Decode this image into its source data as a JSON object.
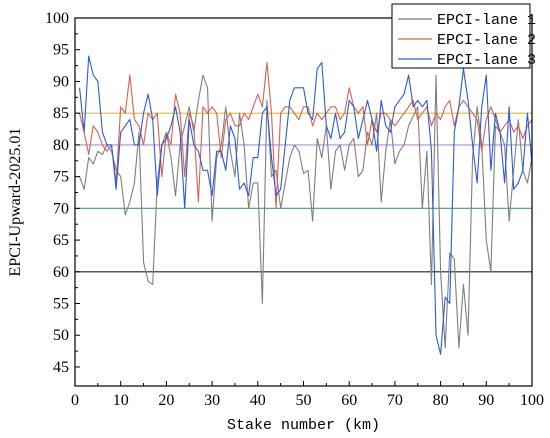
{
  "chart_data": {
    "type": "line",
    "title": "",
    "xlabel": "Stake number (km)",
    "ylabel": "EPCI-Upward-2025.01",
    "xlim": [
      0,
      100
    ],
    "ylim": [
      42,
      100
    ],
    "x_ticks": [
      0,
      10,
      20,
      30,
      40,
      50,
      60,
      70,
      80,
      90,
      100
    ],
    "y_ticks": [
      45,
      50,
      55,
      60,
      65,
      70,
      75,
      80,
      85,
      90,
      95,
      100
    ],
    "grid": false,
    "legend_position": "top-right",
    "reference_lines": [
      {
        "y": 85,
        "color": "#e8b830"
      },
      {
        "y": 80,
        "color": "#b58ad8"
      },
      {
        "y": 70,
        "color": "#3aa37c"
      },
      {
        "y": 60,
        "color": "#222222"
      }
    ],
    "x": [
      1,
      2,
      3,
      4,
      5,
      6,
      7,
      8,
      9,
      10,
      11,
      12,
      13,
      14,
      15,
      16,
      17,
      18,
      19,
      20,
      21,
      22,
      23,
      24,
      25,
      26,
      27,
      28,
      29,
      30,
      31,
      32,
      33,
      34,
      35,
      36,
      37,
      38,
      39,
      40,
      41,
      42,
      43,
      44,
      45,
      46,
      47,
      48,
      49,
      50,
      51,
      52,
      53,
      54,
      55,
      56,
      57,
      58,
      59,
      60,
      61,
      62,
      63,
      64,
      65,
      66,
      67,
      68,
      69,
      70,
      71,
      72,
      73,
      74,
      75,
      76,
      77,
      78,
      79,
      80,
      81,
      82,
      83,
      84,
      85,
      86,
      87,
      88,
      89,
      90,
      91,
      92,
      93,
      94,
      95,
      96,
      97,
      98,
      99,
      100
    ],
    "series": [
      {
        "name": "EPCI-lane 1",
        "color": "#7f7f7f",
        "values": [
          75,
          73,
          78,
          77,
          79,
          78.5,
          80,
          79,
          76,
          75,
          69,
          71,
          74,
          82,
          61.5,
          58.5,
          58,
          74,
          80,
          82,
          78,
          72,
          80,
          83,
          86,
          82,
          87,
          91,
          89,
          68,
          78,
          80,
          86,
          79,
          75,
          85,
          80,
          70,
          74,
          74,
          55,
          87,
          75,
          76,
          70,
          74,
          78,
          80,
          79,
          75.5,
          76,
          68,
          81,
          78,
          83,
          73,
          79,
          80,
          76,
          80,
          81,
          75,
          76,
          82,
          80,
          85,
          71,
          79,
          84,
          77,
          79,
          80,
          83,
          84.5,
          86,
          70,
          79,
          58,
          91,
          60,
          48,
          63,
          62,
          48,
          58,
          50,
          78,
          86,
          80,
          65,
          60,
          83,
          82,
          80,
          68,
          76,
          84,
          76,
          74,
          78
        ]
      },
      {
        "name": "EPCI-lane 2",
        "color": "#d9604f",
        "values": [
          85,
          82,
          78.5,
          83,
          82,
          80,
          79,
          80,
          74,
          86,
          85,
          91,
          84,
          83,
          80,
          85,
          84,
          85,
          75,
          82,
          80,
          88,
          85,
          75,
          85,
          83,
          71,
          86,
          85,
          86,
          85,
          78,
          84,
          85,
          83,
          83,
          85,
          84,
          86,
          88,
          86,
          93,
          85,
          70,
          85,
          86,
          86,
          85,
          84,
          86,
          86,
          83,
          85,
          84,
          85,
          86,
          86,
          84,
          85,
          89,
          86,
          85,
          86,
          80,
          84,
          82,
          85,
          85,
          84,
          83,
          84,
          85,
          86,
          87,
          84,
          85,
          86,
          83,
          85,
          84,
          86,
          87,
          83,
          86,
          87,
          86,
          85,
          84,
          79,
          84,
          86,
          84,
          82,
          83,
          84,
          82,
          83,
          81,
          83,
          84
        ]
      },
      {
        "name": "EPCI-lane 3",
        "color": "#2a5bd7",
        "values": [
          89,
          82,
          94,
          91,
          90,
          82,
          80,
          80,
          73,
          82,
          83,
          84,
          80,
          80,
          85,
          88,
          84,
          72,
          80,
          81,
          83,
          86,
          82,
          70,
          84,
          80,
          79,
          76,
          76,
          72,
          79,
          79,
          76,
          83,
          81,
          73,
          74,
          72,
          78,
          78,
          85,
          86,
          78,
          72,
          73,
          80,
          87,
          89,
          89,
          89,
          85,
          84,
          92,
          93,
          83,
          81,
          85,
          81,
          82,
          87,
          86,
          81,
          84,
          87,
          84,
          79,
          87,
          83,
          82,
          86,
          87,
          88,
          91,
          86,
          87,
          86,
          87,
          79,
          50,
          47,
          56,
          55,
          82,
          86,
          92,
          87,
          80,
          74,
          86,
          91,
          76,
          85,
          82,
          74,
          86,
          73,
          74,
          76,
          85,
          77
        ]
      }
    ]
  }
}
